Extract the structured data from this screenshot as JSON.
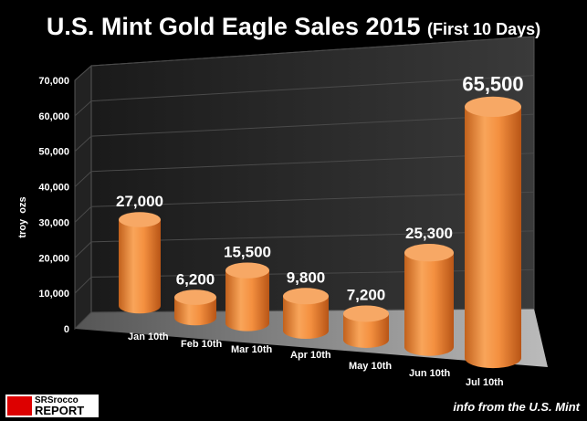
{
  "chart_data": {
    "type": "bar",
    "title": "U.S. Mint Gold Eagle Sales 2015",
    "subtitle": "(First 10 Days)",
    "ylabel": "troy  ozs",
    "xlabel": "",
    "categories": [
      "Jan 10th",
      "Feb 10th",
      "Mar 10th",
      "Apr 10th",
      "May 10th",
      "Jun 10th",
      "Jul 10th"
    ],
    "values": [
      27000,
      6200,
      15500,
      9800,
      7200,
      25300,
      65500
    ],
    "data_labels": [
      "27,000",
      "6,200",
      "15,500",
      "9,800",
      "7,200",
      "25,300",
      "65,500"
    ],
    "ylim": [
      0,
      70000
    ],
    "yticks": [
      "0",
      "10,000",
      "20,000",
      "30,000",
      "40,000",
      "50,000",
      "60,000",
      "70,000"
    ],
    "grid": true,
    "style": "3d-cylinder",
    "bar_color": "#f59a4a"
  },
  "footer": {
    "logo_text_1": "SRSrocco",
    "logo_text_2": "REPORT",
    "credit": "info from the U.S. Mint"
  }
}
